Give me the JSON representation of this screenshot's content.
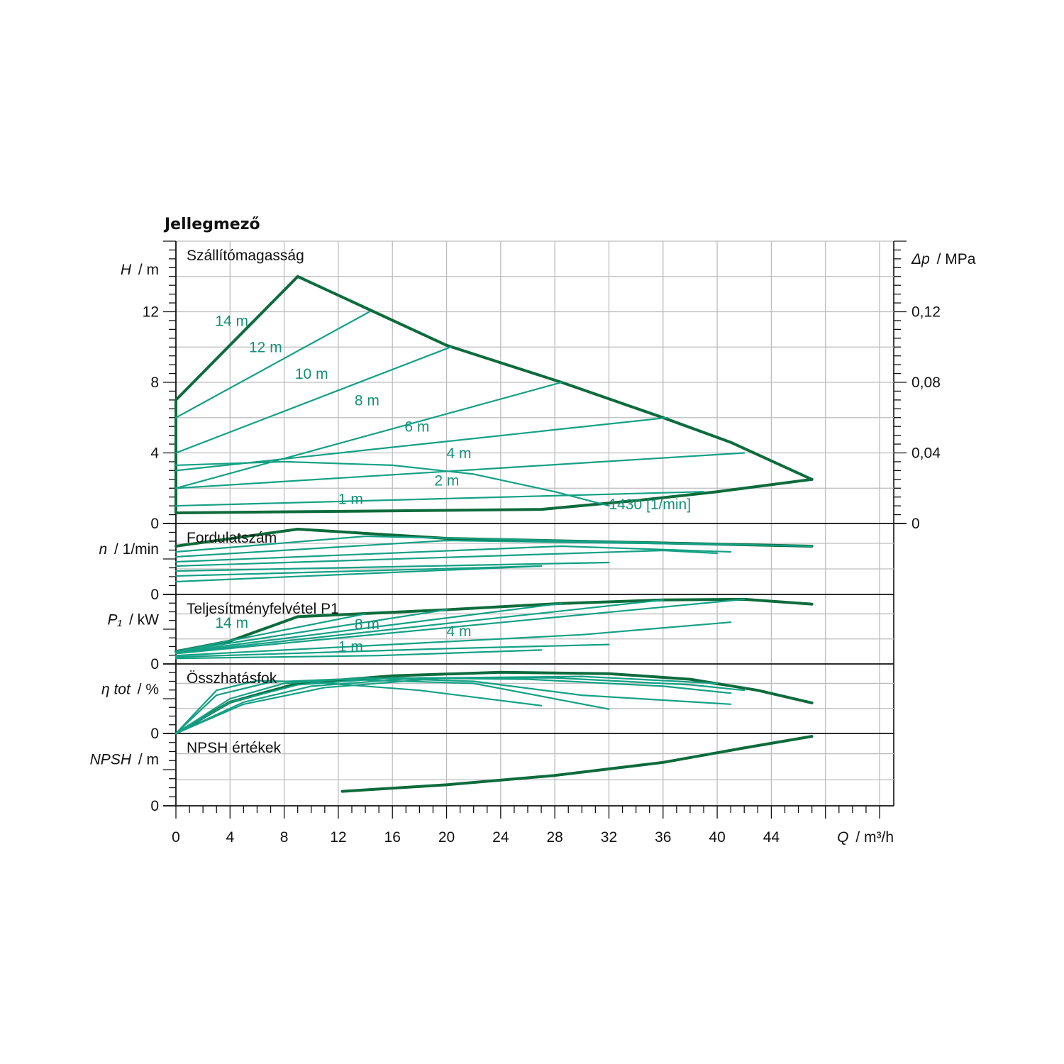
{
  "title": "Jellegmező",
  "colors": {
    "curve_dark": "#0d6b3c",
    "curve_light": "#14a085",
    "label": "#16907a",
    "grid": "#bdbdbd",
    "axis": "#111111"
  },
  "chart_data": {
    "type": "line",
    "x_axis": {
      "symbol": "Q",
      "unit": "/ m³/h",
      "ticks": [
        "0",
        "4",
        "8",
        "12",
        "16",
        "20",
        "24",
        "28",
        "32",
        "36",
        "40",
        "44"
      ],
      "range": [
        0,
        52
      ]
    },
    "panels": [
      {
        "key": "head",
        "title": "Szállítómagasság",
        "y_symbol": "H",
        "y_unit": "/ m",
        "y_range": [
          0,
          16
        ],
        "y_ticks": [
          "0",
          "4",
          "8",
          "12"
        ],
        "right_axis": {
          "symbol": "Δp",
          "unit": "/ MPa",
          "ticks": [
            "0",
            "0,04",
            "0,08",
            "0,12"
          ]
        },
        "series": [
          {
            "style": "dark",
            "points": [
              [
                0,
                7
              ],
              [
                9,
                14
              ],
              [
                20,
                10.1
              ],
              [
                28.5,
                8
              ],
              [
                36,
                6
              ],
              [
                41,
                4.6
              ],
              [
                47,
                2.5
              ]
            ]
          },
          {
            "style": "dark",
            "points": [
              [
                0,
                0.6
              ],
              [
                27,
                0.8
              ],
              [
                34,
                1.3
              ],
              [
                40,
                1.8
              ],
              [
                47,
                2.5
              ]
            ]
          },
          {
            "style": "dark",
            "points": [
              [
                0,
                0.6
              ],
              [
                0,
                7
              ]
            ]
          },
          {
            "style": "light",
            "points": [
              [
                0,
                6
              ],
              [
                14.3,
                12
              ]
            ]
          },
          {
            "style": "light",
            "points": [
              [
                0,
                4
              ],
              [
                20.3,
                10
              ]
            ]
          },
          {
            "style": "light",
            "points": [
              [
                0,
                2
              ],
              [
                28.5,
                8
              ]
            ]
          },
          {
            "style": "light",
            "points": [
              [
                0,
                3
              ],
              [
                36.3,
                6
              ]
            ]
          },
          {
            "style": "light",
            "points": [
              [
                0,
                2
              ],
              [
                42,
                4
              ]
            ]
          },
          {
            "style": "light",
            "points": [
              [
                0,
                1
              ],
              [
                39,
                1.8
              ]
            ]
          },
          {
            "style": "light",
            "points": [
              [
                0,
                3.3
              ],
              [
                8,
                3.5
              ],
              [
                16,
                3.3
              ],
              [
                22,
                2.8
              ],
              [
                28,
                1.8
              ],
              [
                32,
                1
              ]
            ]
          }
        ],
        "labels": [
          {
            "text": "14 m",
            "x": 2.9,
            "y": 11.2
          },
          {
            "text": "12 m",
            "x": 5.4,
            "y": 9.7
          },
          {
            "text": "10 m",
            "x": 8.8,
            "y": 8.2
          },
          {
            "text": "8 m",
            "x": 13.2,
            "y": 6.7
          },
          {
            "text": "6 m",
            "x": 16.9,
            "y": 5.2
          },
          {
            "text": "4 m",
            "x": 20.0,
            "y": 3.7
          },
          {
            "text": "2 m",
            "x": 19.1,
            "y": 2.15
          },
          {
            "text": "1 m",
            "x": 12.0,
            "y": 1.1
          },
          {
            "text": "1430 [1/min]",
            "x": 32.0,
            "y": 0.8
          }
        ]
      },
      {
        "key": "speed",
        "title": "Fordulatszám",
        "y_symbol": "n",
        "y_unit": "/ 1/min",
        "y_range": [
          0,
          1
        ],
        "y_ticks": [
          "0"
        ],
        "series": [
          {
            "style": "dark",
            "points": [
              [
                0,
                0.68
              ],
              [
                9,
                0.92
              ],
              [
                20,
                0.79
              ],
              [
                47,
                0.68
              ]
            ]
          },
          {
            "style": "light",
            "points": [
              [
                0,
                0.6
              ],
              [
                14,
                0.82
              ],
              [
                47,
                0.68
              ]
            ]
          },
          {
            "style": "light",
            "points": [
              [
                0,
                0.53
              ],
              [
                20,
                0.76
              ],
              [
                42,
                0.7
              ]
            ]
          },
          {
            "style": "light",
            "points": [
              [
                0,
                0.46
              ],
              [
                28.5,
                0.68
              ],
              [
                41,
                0.6
              ]
            ]
          },
          {
            "style": "light",
            "points": [
              [
                0,
                0.4
              ],
              [
                36,
                0.62
              ],
              [
                40,
                0.58
              ]
            ]
          },
          {
            "style": "light",
            "points": [
              [
                0,
                0.33
              ],
              [
                32,
                0.45
              ]
            ]
          },
          {
            "style": "light",
            "points": [
              [
                0,
                0.26
              ],
              [
                27,
                0.4
              ]
            ]
          },
          {
            "style": "light",
            "points": [
              [
                0,
                0.18
              ],
              [
                27,
                0.4
              ]
            ]
          }
        ],
        "labels": []
      },
      {
        "key": "power",
        "title": "Teljesítményfelvétel P1",
        "y_symbol": "P₁",
        "y_unit": "/ kW",
        "y_range": [
          0,
          1
        ],
        "y_ticks": [
          "0"
        ],
        "series": [
          {
            "style": "dark",
            "points": [
              [
                0,
                0.18
              ],
              [
                4,
                0.33
              ],
              [
                9,
                0.68
              ],
              [
                20,
                0.78
              ],
              [
                28.5,
                0.87
              ],
              [
                36,
                0.92
              ],
              [
                42,
                0.93
              ],
              [
                47,
                0.86
              ]
            ]
          },
          {
            "style": "light",
            "points": [
              [
                0,
                0.18
              ],
              [
                14,
                0.72
              ]
            ]
          },
          {
            "style": "light",
            "points": [
              [
                0,
                0.18
              ],
              [
                20,
                0.78
              ]
            ]
          },
          {
            "style": "light",
            "points": [
              [
                0,
                0.17
              ],
              [
                28.5,
                0.87
              ]
            ]
          },
          {
            "style": "light",
            "points": [
              [
                0,
                0.16
              ],
              [
                36,
                0.92
              ]
            ]
          },
          {
            "style": "light",
            "points": [
              [
                0,
                0.15
              ],
              [
                42,
                0.93
              ]
            ]
          },
          {
            "style": "light",
            "points": [
              [
                0,
                0.12
              ],
              [
                30,
                0.42
              ],
              [
                41,
                0.6
              ]
            ]
          },
          {
            "style": "light",
            "points": [
              [
                0,
                0.1
              ],
              [
                20,
                0.22
              ],
              [
                32,
                0.28
              ]
            ]
          },
          {
            "style": "light",
            "points": [
              [
                0,
                0.08
              ],
              [
                15,
                0.12
              ],
              [
                27,
                0.2
              ]
            ]
          }
        ],
        "labels": [
          {
            "text": "14 m",
            "x": 2.9,
            "y": 0.52
          },
          {
            "text": "8 m",
            "x": 13.2,
            "y": 0.5
          },
          {
            "text": "4 m",
            "x": 20.0,
            "y": 0.4
          },
          {
            "text": "1 m",
            "x": 12.0,
            "y": 0.18
          }
        ]
      },
      {
        "key": "efficiency",
        "title": "Összhatásfok",
        "y_symbol": "η tot",
        "y_unit": "/ %",
        "y_range": [
          0,
          1
        ],
        "y_ticks": [
          "0"
        ],
        "series": [
          {
            "style": "dark",
            "points": [
              [
                0,
                0
              ],
              [
                4,
                0.45
              ],
              [
                9,
                0.72
              ],
              [
                16,
                0.83
              ],
              [
                24,
                0.88
              ],
              [
                32,
                0.86
              ],
              [
                38,
                0.78
              ],
              [
                43,
                0.62
              ],
              [
                47,
                0.44
              ]
            ]
          },
          {
            "style": "light",
            "points": [
              [
                0,
                0
              ],
              [
                3,
                0.62
              ],
              [
                6,
                0.76
              ],
              [
                10,
                0.74
              ],
              [
                18,
                0.62
              ],
              [
                27,
                0.4
              ]
            ]
          },
          {
            "style": "light",
            "points": [
              [
                0,
                0
              ],
              [
                3,
                0.55
              ],
              [
                7,
                0.74
              ],
              [
                12,
                0.78
              ],
              [
                22,
                0.72
              ],
              [
                32,
                0.35
              ]
            ]
          },
          {
            "style": "light",
            "points": [
              [
                0,
                0
              ],
              [
                4,
                0.5
              ],
              [
                8,
                0.72
              ],
              [
                14,
                0.8
              ],
              [
                22,
                0.75
              ],
              [
                30,
                0.55
              ],
              [
                41,
                0.42
              ]
            ]
          },
          {
            "style": "light",
            "points": [
              [
                0,
                0
              ],
              [
                4,
                0.45
              ],
              [
                9,
                0.7
              ],
              [
                16,
                0.8
              ],
              [
                26,
                0.78
              ],
              [
                36,
                0.68
              ],
              [
                41,
                0.58
              ]
            ]
          },
          {
            "style": "light",
            "points": [
              [
                0,
                0
              ],
              [
                5,
                0.45
              ],
              [
                10,
                0.68
              ],
              [
                18,
                0.8
              ],
              [
                28,
                0.8
              ],
              [
                38,
                0.7
              ],
              [
                42,
                0.62
              ]
            ]
          },
          {
            "style": "light",
            "points": [
              [
                0,
                0
              ],
              [
                5,
                0.42
              ],
              [
                11,
                0.66
              ],
              [
                20,
                0.8
              ],
              [
                30,
                0.82
              ],
              [
                40,
                0.72
              ]
            ]
          }
        ],
        "labels": []
      },
      {
        "key": "npsh",
        "title": "NPSH értékek",
        "y_symbol": "NPSH",
        "y_unit": "/ m",
        "y_range": [
          0,
          1
        ],
        "y_ticks": [
          "0"
        ],
        "series": [
          {
            "style": "dark",
            "points": [
              [
                12.3,
                0.2
              ],
              [
                20,
                0.29
              ],
              [
                28,
                0.42
              ],
              [
                36,
                0.6
              ],
              [
                42,
                0.8
              ],
              [
                47,
                0.96
              ]
            ]
          }
        ],
        "labels": []
      }
    ],
    "grid": true,
    "legend": "none"
  }
}
